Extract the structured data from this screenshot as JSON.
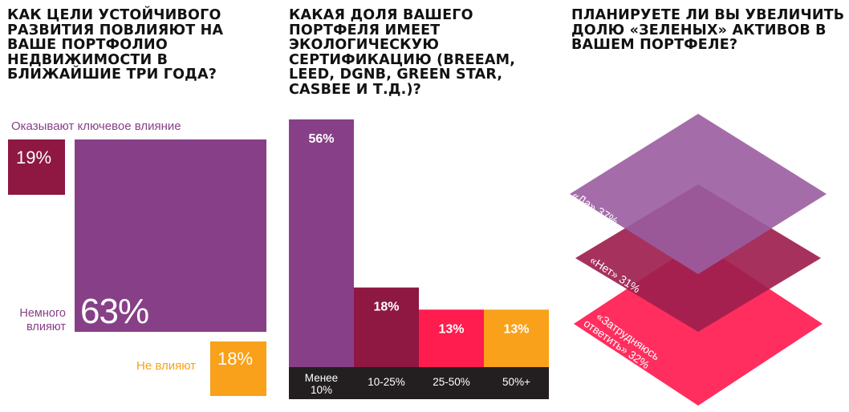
{
  "colors": {
    "purple": "#874087",
    "maroon": "#8e1842",
    "orange": "#f9a11b",
    "red": "#ff1c4e",
    "dark": "#231f20",
    "layer_top": "#9a5da0",
    "layer_mid": "#9e1f4e",
    "layer_bottom": "#ff2e5e"
  },
  "questions": {
    "q1": "Как цели устойчивого развития повлияют на ваше портфолио недвижимости в ближайшие три года?",
    "q2": "Какая доля вашего портфеля имеет экологическую сертификацию (BREEAM, LEED, DGNB, Green Star, CASBEE и т.д.)?",
    "q3": "Планируете ли вы увеличить долю «зеленых» активов в вашем портфеле?"
  },
  "chart_data": [
    {
      "type": "treemap",
      "items": [
        {
          "label": "Оказывают ключевое влияние",
          "value": 19,
          "text": "19%"
        },
        {
          "label": "Немного влияют",
          "value": 63,
          "text": "63%"
        },
        {
          "label": "Не влияют",
          "value": 18,
          "text": "18%"
        }
      ]
    },
    {
      "type": "bar",
      "categories": [
        "Менее 10%",
        "10-25%",
        "25-50%",
        "50%+"
      ],
      "values": [
        56,
        18,
        13,
        13
      ],
      "value_labels": [
        "56%",
        "18%",
        "13%",
        "13%"
      ]
    },
    {
      "type": "stacked-layers",
      "items": [
        {
          "label": "«Да» 37%",
          "value": 37
        },
        {
          "label": "«Нет» 31%",
          "value": 31
        },
        {
          "label": "«Затрудняюсь ответить» 32%",
          "value": 32
        }
      ]
    }
  ]
}
